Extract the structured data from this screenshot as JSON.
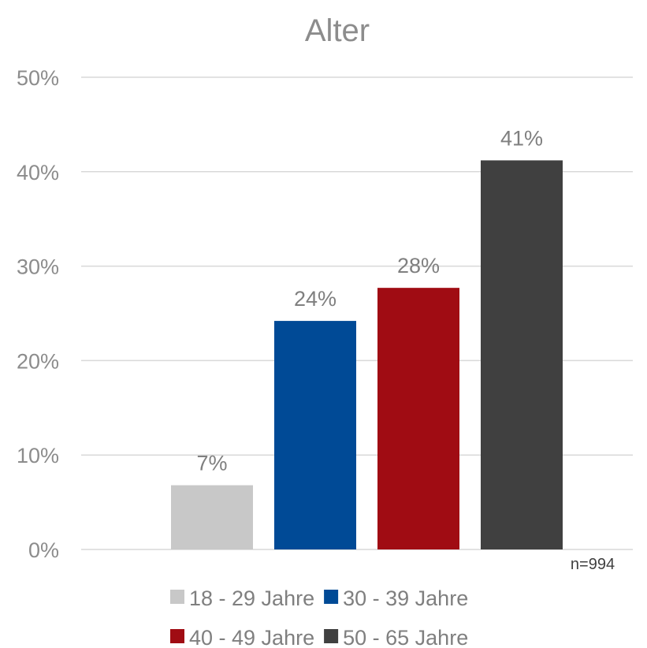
{
  "chart_data": {
    "type": "bar",
    "title": "Alter",
    "xlabel": "",
    "ylabel": "",
    "ylim": [
      0,
      50
    ],
    "yticks": [
      "0%",
      "10%",
      "20%",
      "30%",
      "40%",
      "50%"
    ],
    "grid": true,
    "legend_position": "bottom",
    "series": [
      {
        "name": "18 - 29 Jahre",
        "value": 6.8,
        "label": "7%",
        "color": "#c8c8c8"
      },
      {
        "name": "30 - 39 Jahre",
        "value": 24.2,
        "label": "24%",
        "color": "#004a96"
      },
      {
        "name": "40 - 49 Jahre",
        "value": 27.7,
        "label": "28%",
        "color": "#a00c13"
      },
      {
        "name": "50 - 65 Jahre",
        "value": 41.2,
        "label": "41%",
        "color": "#404040"
      }
    ],
    "note": "n=994"
  }
}
